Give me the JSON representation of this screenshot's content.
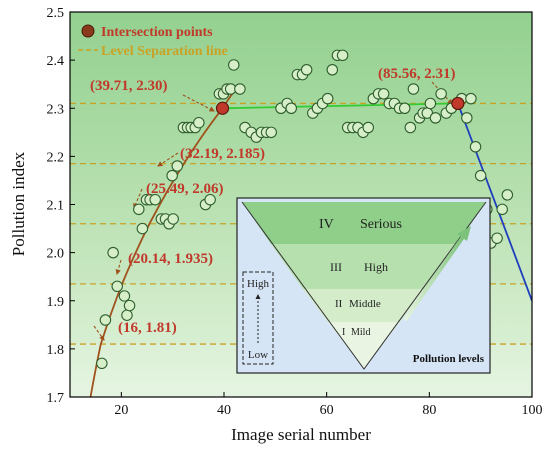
{
  "chart_data": {
    "type": "scatter",
    "xlabel": "Image serial number",
    "ylabel": "Pollution index",
    "xlim": [
      10,
      100
    ],
    "ylim": [
      1.7,
      2.5
    ],
    "x_ticks": [
      20,
      40,
      60,
      80,
      100
    ],
    "y_ticks": [
      1.7,
      1.8,
      1.9,
      2.0,
      2.1,
      2.2,
      2.3,
      2.4,
      2.5
    ],
    "grid": false,
    "legend_position": "top-left",
    "legend": {
      "intersection": "Intersection points",
      "level_line": "Level Separation line"
    },
    "level_lines": [
      1.81,
      1.935,
      2.06,
      2.185,
      2.31
    ],
    "colors": {
      "points_fill": "#d6efc8",
      "points_stroke": "#2f5f2f",
      "rising_curve": "#a0521d",
      "plateau_line": "#33cc33",
      "falling_line": "#1f3fbf",
      "level_line": "#c9a227",
      "intersection_fill": "#c0392b",
      "label_text": "#c0392b",
      "band_dark": "#9fd49a",
      "band_light": "#e6f4e0"
    },
    "series": [
      {
        "values": [
          [
            16.2,
            1.77
          ],
          [
            16.9,
            1.86
          ],
          [
            18.4,
            2.0
          ],
          [
            19.2,
            1.93
          ],
          [
            20.6,
            1.91
          ],
          [
            21.1,
            1.87
          ],
          [
            21.6,
            1.89
          ],
          [
            23.4,
            2.09
          ],
          [
            24.1,
            2.05
          ],
          [
            24.9,
            2.11
          ],
          [
            25.6,
            2.11
          ],
          [
            26.6,
            2.11
          ],
          [
            27.8,
            2.07
          ],
          [
            28.6,
            2.07
          ],
          [
            29.3,
            2.06
          ],
          [
            30.1,
            2.07
          ],
          [
            29.9,
            2.16
          ],
          [
            30.9,
            2.18
          ],
          [
            32.1,
            2.26
          ],
          [
            32.9,
            2.26
          ],
          [
            33.6,
            2.26
          ],
          [
            34.4,
            2.26
          ],
          [
            35.1,
            2.27
          ],
          [
            36.4,
            2.1
          ],
          [
            37.3,
            2.11
          ],
          [
            39.1,
            2.33
          ],
          [
            39.9,
            2.33
          ],
          [
            40.6,
            2.34
          ],
          [
            41.3,
            2.34
          ],
          [
            41.9,
            2.39
          ],
          [
            43.1,
            2.34
          ],
          [
            44.1,
            2.26
          ],
          [
            45.3,
            2.25
          ],
          [
            46.3,
            2.24
          ],
          [
            47.3,
            2.25
          ],
          [
            48.3,
            2.25
          ],
          [
            49.2,
            2.25
          ],
          [
            51.1,
            2.3
          ],
          [
            52.3,
            2.31
          ],
          [
            53.1,
            2.3
          ],
          [
            54.3,
            2.37
          ],
          [
            55.3,
            2.37
          ],
          [
            56.1,
            2.38
          ],
          [
            57.3,
            2.29
          ],
          [
            58.2,
            2.3
          ],
          [
            59.2,
            2.31
          ],
          [
            60.2,
            2.32
          ],
          [
            61.1,
            2.38
          ],
          [
            62.1,
            2.41
          ],
          [
            63.1,
            2.41
          ],
          [
            64.1,
            2.26
          ],
          [
            65.1,
            2.26
          ],
          [
            66.1,
            2.26
          ],
          [
            67.1,
            2.25
          ],
          [
            68.1,
            2.26
          ],
          [
            69.1,
            2.32
          ],
          [
            70.1,
            2.33
          ],
          [
            71.1,
            2.33
          ],
          [
            72.2,
            2.31
          ],
          [
            73.2,
            2.31
          ],
          [
            74.2,
            2.3
          ],
          [
            75.2,
            2.3
          ],
          [
            76.3,
            2.26
          ],
          [
            76.9,
            2.34
          ],
          [
            78.1,
            2.28
          ],
          [
            78.8,
            2.29
          ],
          [
            79.6,
            2.29
          ],
          [
            80.2,
            2.31
          ],
          [
            81.2,
            2.28
          ],
          [
            82.3,
            2.33
          ],
          [
            83.3,
            2.29
          ],
          [
            84.3,
            2.3
          ],
          [
            86.3,
            2.32
          ],
          [
            87.3,
            2.28
          ],
          [
            88.1,
            2.32
          ],
          [
            89.0,
            2.22
          ],
          [
            90.0,
            2.16
          ],
          [
            91.2,
            2.09
          ],
          [
            92.0,
            2.02
          ],
          [
            93.2,
            2.03
          ],
          [
            94.2,
            2.09
          ],
          [
            95.2,
            2.12
          ]
        ]
      }
    ],
    "lines": {
      "rising": [
        [
          14,
          1.7
        ],
        [
          16,
          1.81
        ],
        [
          20.14,
          1.935
        ],
        [
          25.49,
          2.06
        ],
        [
          32.19,
          2.185
        ],
        [
          39.71,
          2.3
        ],
        [
          43,
          2.35
        ]
      ],
      "plateau": [
        [
          39.71,
          2.3
        ],
        [
          85.56,
          2.31
        ]
      ],
      "falling": [
        [
          85.56,
          2.31
        ],
        [
          100,
          1.9
        ]
      ]
    },
    "intersections": [
      [
        39.71,
        2.3
      ],
      [
        85.56,
        2.31
      ]
    ],
    "annotations": [
      {
        "text": "(16, 1.81)",
        "x": 16,
        "y": 1.81
      },
      {
        "text": "(20.14, 1.935)",
        "x": 20.14,
        "y": 1.935
      },
      {
        "text": "(25.49, 2.06)",
        "x": 25.49,
        "y": 2.06
      },
      {
        "text": "(32.19, 2.185)",
        "x": 32.19,
        "y": 2.185
      },
      {
        "text": "(39.71, 2.30)",
        "x": 39.71,
        "y": 2.3
      },
      {
        "text": "(85.56, 2.31)",
        "x": 85.56,
        "y": 2.31
      }
    ],
    "inset": {
      "title": "Pollution levels",
      "levels": [
        {
          "numeral": "IV",
          "name": "Serious"
        },
        {
          "numeral": "III",
          "name": "High"
        },
        {
          "numeral": "II",
          "name": "Middle"
        },
        {
          "numeral": "I",
          "name": "Mild"
        }
      ],
      "scale_high": "High",
      "scale_low": "Low"
    }
  }
}
